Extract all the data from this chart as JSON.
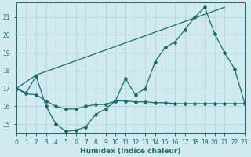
{
  "xlabel": "Humidex (Indice chaleur)",
  "background_color": "#d0eaf0",
  "grid_color": "#b8d8e0",
  "line_color": "#1a6b6b",
  "xlim": [
    0,
    23
  ],
  "ylim": [
    14.5,
    21.8
  ],
  "xticks": [
    0,
    1,
    2,
    3,
    4,
    5,
    6,
    7,
    8,
    9,
    10,
    11,
    12,
    13,
    14,
    15,
    16,
    17,
    18,
    19,
    20,
    21,
    22,
    23
  ],
  "yticks": [
    15,
    16,
    17,
    18,
    19,
    20,
    21
  ],
  "line1_x": [
    0,
    2,
    21
  ],
  "line1_y": [
    17.0,
    17.75,
    21.55
  ],
  "line2_x": [
    0,
    1,
    2,
    3,
    4,
    5,
    6,
    7,
    8,
    9,
    10,
    11,
    12,
    13,
    14,
    15,
    16,
    17,
    18,
    19,
    20,
    21,
    22,
    23
  ],
  "line2_y": [
    17.0,
    16.75,
    17.7,
    16.0,
    15.0,
    14.6,
    14.65,
    14.85,
    15.55,
    15.85,
    16.3,
    17.55,
    16.65,
    17.0,
    18.5,
    19.3,
    19.6,
    20.3,
    21.0,
    21.55,
    20.05,
    19.0,
    18.1,
    16.2
  ],
  "line3_x": [
    0,
    1,
    2,
    3,
    4,
    5,
    6,
    7,
    8,
    9,
    10,
    11,
    12,
    13,
    14,
    15,
    16,
    17,
    18,
    19,
    20,
    21,
    22,
    23
  ],
  "line3_y": [
    17.0,
    16.7,
    16.65,
    16.3,
    16.0,
    15.85,
    15.85,
    16.0,
    16.1,
    16.1,
    16.3,
    16.3,
    16.25,
    16.25,
    16.2,
    16.2,
    16.15,
    16.15,
    16.15,
    16.15,
    16.15,
    16.15,
    16.15,
    16.15
  ]
}
